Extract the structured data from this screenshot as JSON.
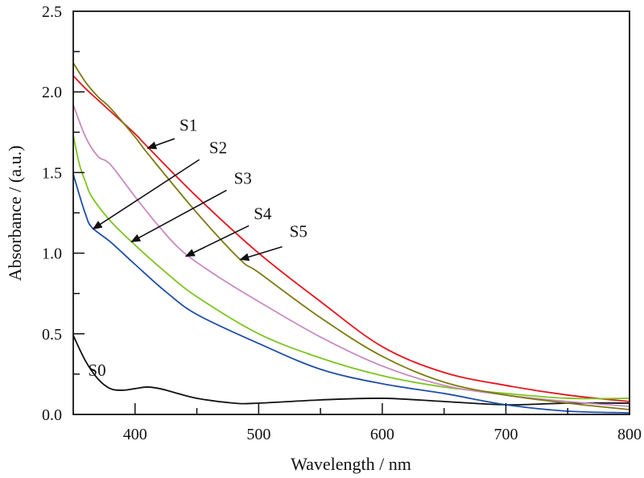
{
  "chart_data": {
    "type": "line",
    "title": "",
    "xlabel": "Wavelength / nm",
    "ylabel": "Absorbance / (a.u.)",
    "xlim": [
      350,
      800
    ],
    "ylim": [
      0,
      2.5
    ],
    "xticks": [
      "400",
      "500",
      "600",
      "700",
      "800"
    ],
    "xtick_values": [
      400,
      500,
      600,
      700,
      800
    ],
    "yticks": [
      "0.0",
      "0.5",
      "1.0",
      "1.5",
      "2.0",
      "2.5"
    ],
    "ytick_values": [
      0,
      0.5,
      1.0,
      1.5,
      2.0,
      2.5
    ],
    "grid": false,
    "series": [
      {
        "name": "S0",
        "color": "#111111",
        "x": [
          350,
          360,
          370,
          380,
          390,
          400,
          410,
          420,
          430,
          450,
          480,
          500,
          550,
          600,
          650,
          700,
          750,
          800
        ],
        "y": [
          0.49,
          0.33,
          0.22,
          0.16,
          0.15,
          0.16,
          0.17,
          0.16,
          0.14,
          0.1,
          0.07,
          0.07,
          0.09,
          0.1,
          0.08,
          0.06,
          0.07,
          0.07
        ],
        "label_at": [
          362,
          0.24
        ],
        "arrow": null
      },
      {
        "name": "S1",
        "color": "#e8131b",
        "x": [
          350,
          360,
          370,
          380,
          400,
          410,
          450,
          500,
          550,
          600,
          650,
          700,
          750,
          800
        ],
        "y": [
          2.1,
          2.02,
          1.95,
          1.88,
          1.74,
          1.66,
          1.35,
          1.0,
          0.7,
          0.42,
          0.26,
          0.18,
          0.12,
          0.08
        ],
        "label_at": [
          436,
          1.76
        ],
        "arrow": [
          [
            432,
            1.71
          ],
          [
            410,
            1.65
          ]
        ]
      },
      {
        "name": "S2",
        "color": "#1f4fa8",
        "x": [
          350,
          355,
          360,
          365,
          380,
          400,
          425,
          450,
          500,
          550,
          600,
          650,
          700,
          750,
          800
        ],
        "y": [
          1.49,
          1.36,
          1.24,
          1.16,
          1.07,
          0.93,
          0.76,
          0.62,
          0.44,
          0.28,
          0.19,
          0.13,
          0.06,
          0.02,
          0.01
        ],
        "label_at": [
          460,
          1.62
        ],
        "arrow": [
          [
            452,
            1.58
          ],
          [
            366,
            1.15
          ]
        ]
      },
      {
        "name": "S3",
        "color": "#7cc520",
        "x": [
          350,
          355,
          360,
          365,
          380,
          400,
          425,
          450,
          500,
          550,
          600,
          650,
          700,
          750,
          800
        ],
        "y": [
          1.73,
          1.55,
          1.44,
          1.35,
          1.2,
          1.05,
          0.88,
          0.73,
          0.5,
          0.35,
          0.24,
          0.17,
          0.13,
          0.1,
          0.1
        ],
        "label_at": [
          480,
          1.43
        ],
        "arrow": [
          [
            474,
            1.39
          ],
          [
            397,
            1.07
          ]
        ]
      },
      {
        "name": "S4",
        "color": "#c98bc2",
        "x": [
          350,
          360,
          370,
          380,
          400,
          420,
          440,
          470,
          500,
          550,
          600,
          650,
          700,
          750,
          800
        ],
        "y": [
          1.92,
          1.72,
          1.6,
          1.55,
          1.35,
          1.16,
          1.0,
          0.84,
          0.7,
          0.48,
          0.3,
          0.18,
          0.12,
          0.08,
          0.05
        ],
        "label_at": [
          496,
          1.21
        ],
        "arrow": [
          [
            492,
            1.17
          ],
          [
            441,
            0.98
          ]
        ]
      },
      {
        "name": "S5",
        "color": "#7f7a12",
        "x": [
          350,
          360,
          370,
          380,
          400,
          410,
          450,
          485,
          500,
          550,
          600,
          650,
          700,
          750,
          800
        ],
        "y": [
          2.18,
          2.06,
          1.97,
          1.9,
          1.72,
          1.62,
          1.25,
          0.96,
          0.88,
          0.6,
          0.36,
          0.2,
          0.12,
          0.07,
          0.03
        ],
        "label_at": [
          525,
          1.1
        ],
        "arrow": [
          [
            519,
            1.04
          ],
          [
            485,
            0.96
          ]
        ]
      }
    ]
  }
}
